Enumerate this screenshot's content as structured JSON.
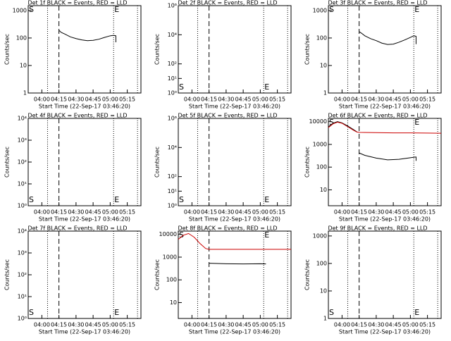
{
  "chart_data": [
    {
      "type": "line",
      "title": "Det 1f BLACK = Events, RED = LLD",
      "xlabel": "Start Time (22-Sep-17 03:46:20)",
      "ylabel": "Counts/sec",
      "log_y": true,
      "xlim": [
        "03:48",
        "05:27"
      ],
      "xticks": [
        "04:00",
        "04:15",
        "04:30",
        "04:45",
        "05:00",
        "05:15"
      ],
      "ylim": [
        1,
        1500
      ],
      "yticks": [
        1,
        10,
        100,
        1000
      ],
      "dotted_lines": [
        "04:05",
        "05:03",
        "05:24"
      ],
      "dashed_lines": [
        "04:15"
      ],
      "s_label": "S",
      "e_label": "E",
      "label_position": "top",
      "series": [
        {
          "color": "#000000",
          "x": [
            "04:15",
            "04:17",
            "04:20",
            "04:25",
            "04:30",
            "04:35",
            "04:40",
            "04:45",
            "04:50",
            "04:55",
            "05:00",
            "05:03",
            "05:05",
            "05:05"
          ],
          "values": [
            190,
            160,
            140,
            110,
            95,
            85,
            80,
            82,
            90,
            105,
            120,
            125,
            120,
            70
          ]
        }
      ]
    },
    {
      "type": "line",
      "title": "Det 2f BLACK = Events, RED = LLD",
      "xlabel": "Start Time (22-Sep-17 03:46:20)",
      "ylabel": "Counts/sec",
      "log_y": true,
      "xlim": [
        "03:48",
        "05:27"
      ],
      "xticks": [
        "04:00",
        "04:15",
        "04:30",
        "04:45",
        "05:00",
        "05:15"
      ],
      "ylim": [
        1,
        1000000
      ],
      "yticks": [
        {
          "value": 1,
          "label": "10⁰"
        },
        {
          "value": 10,
          "label": "10¹"
        },
        {
          "value": 100,
          "label": "10²"
        },
        {
          "value": 10000,
          "label": "10⁴"
        },
        {
          "value": 1000000,
          "label": "10⁶"
        }
      ],
      "dotted_lines": [
        "04:05",
        "05:03",
        "05:24"
      ],
      "dashed_lines": [
        "04:15"
      ],
      "s_label": "S",
      "e_label": "E",
      "label_position": "bottom",
      "series": []
    },
    {
      "type": "line",
      "title": "Det 3f BLACK = Events, RED = LLD",
      "xlabel": "Start Time (22-Sep-17 03:46:20)",
      "ylabel": "Counts/sec",
      "log_y": true,
      "xlim": [
        "03:48",
        "05:27"
      ],
      "xticks": [
        "04:00",
        "04:15",
        "04:30",
        "04:45",
        "05:00",
        "05:15"
      ],
      "ylim": [
        1,
        1500
      ],
      "yticks": [
        1,
        10,
        100,
        1000
      ],
      "dotted_lines": [
        "04:05",
        "05:03",
        "05:24"
      ],
      "dashed_lines": [
        "04:15"
      ],
      "s_label": "S",
      "e_label": "E",
      "label_position": "top",
      "series": [
        {
          "color": "#000000",
          "x": [
            "04:15",
            "04:17",
            "04:20",
            "04:25",
            "04:30",
            "04:35",
            "04:40",
            "04:45",
            "04:50",
            "04:55",
            "05:00",
            "05:03",
            "05:05",
            "05:05"
          ],
          "values": [
            170,
            150,
            120,
            95,
            80,
            65,
            58,
            60,
            70,
            85,
            105,
            120,
            115,
            60
          ]
        }
      ]
    },
    {
      "type": "line",
      "title": "Det 4f BLACK = Events, RED = LLD",
      "xlabel": "Start Time (22-Sep-17 03:46:20)",
      "ylabel": "Counts/sec",
      "log_y": true,
      "xlim": [
        "03:48",
        "05:27"
      ],
      "xticks": [
        "04:00",
        "04:15",
        "04:30",
        "04:45",
        "05:00",
        "05:15"
      ],
      "ylim": [
        1,
        10000
      ],
      "yticks": [
        {
          "value": 1,
          "label": "10⁰"
        },
        {
          "value": 10,
          "label": "10¹"
        },
        {
          "value": 100,
          "label": "10²"
        },
        {
          "value": 1000,
          "label": "10³"
        },
        {
          "value": 10000,
          "label": "10⁴"
        }
      ],
      "dotted_lines": [
        "04:05",
        "05:03",
        "05:24"
      ],
      "dashed_lines": [
        "04:15"
      ],
      "s_label": "S",
      "e_label": "E",
      "label_position": "bottom",
      "series": []
    },
    {
      "type": "line",
      "title": "Det 5f BLACK = Events, RED = LLD",
      "xlabel": "Start Time (22-Sep-17 03:46:20)",
      "ylabel": "Counts/sec",
      "log_y": true,
      "xlim": [
        "03:48",
        "05:27"
      ],
      "xticks": [
        "04:00",
        "04:15",
        "04:30",
        "04:45",
        "05:00",
        "05:15"
      ],
      "ylim": [
        1,
        1000000
      ],
      "yticks": [
        {
          "value": 1,
          "label": "10⁰"
        },
        {
          "value": 10,
          "label": "10¹"
        },
        {
          "value": 100,
          "label": "10²"
        },
        {
          "value": 10000,
          "label": "10⁴"
        },
        {
          "value": 1000000,
          "label": "10⁶"
        }
      ],
      "dotted_lines": [
        "04:05",
        "05:03",
        "05:24"
      ],
      "dashed_lines": [
        "04:15"
      ],
      "s_label": "S",
      "e_label": "E",
      "label_position": "bottom",
      "series": []
    },
    {
      "type": "line",
      "title": "Det 6f BLACK = Events, RED = LLD",
      "xlabel": "Start Time (22-Sep-17 03:46:20)",
      "ylabel": "Counts/sec",
      "log_y": true,
      "xlim": [
        "03:48",
        "05:27"
      ],
      "xticks": [
        "04:00",
        "04:15",
        "04:30",
        "04:45",
        "05:00",
        "05:15"
      ],
      "ylim": [
        2,
        14000
      ],
      "yticks": [
        10,
        100,
        1000,
        10000
      ],
      "dotted_lines": [
        "04:05",
        "05:03",
        "05:24"
      ],
      "dashed_lines": [
        "04:15"
      ],
      "s_label": "S",
      "e_label": "E",
      "label_position": "top",
      "series": [
        {
          "color": "#000000",
          "x": [
            "03:48",
            "03:52",
            "03:56",
            "04:00",
            "04:05",
            "04:10",
            "04:13",
            "04:15",
            "04:15",
            "04:20",
            "04:30",
            "04:40",
            "04:50",
            "05:00",
            "05:05",
            "05:05"
          ],
          "values": [
            6000,
            8500,
            10000,
            8800,
            6500,
            4500,
            3600,
            null,
            420,
            330,
            250,
            210,
            220,
            260,
            280,
            190
          ]
        },
        {
          "color": "#cc0000",
          "x": [
            "03:48",
            "03:52",
            "03:56",
            "04:00",
            "04:05",
            "04:10",
            "04:13",
            "04:15",
            "04:30",
            "04:45",
            "05:00",
            "05:15",
            "05:27"
          ],
          "values": [
            5500,
            8000,
            9500,
            8500,
            6000,
            4200,
            3500,
            3400,
            3300,
            3200,
            3200,
            3150,
            3100
          ]
        }
      ]
    },
    {
      "type": "line",
      "title": "Det 7f BLACK = Events, RED = LLD",
      "xlabel": "Start Time (22-Sep-17 03:46:20)",
      "ylabel": "Counts/sec",
      "log_y": true,
      "xlim": [
        "03:48",
        "05:27"
      ],
      "xticks": [
        "04:00",
        "04:15",
        "04:30",
        "04:45",
        "05:00",
        "05:15"
      ],
      "ylim": [
        1,
        10000
      ],
      "yticks": [
        {
          "value": 1,
          "label": "10⁰"
        },
        {
          "value": 10,
          "label": "10¹"
        },
        {
          "value": 100,
          "label": "10²"
        },
        {
          "value": 1000,
          "label": "10³"
        },
        {
          "value": 10000,
          "label": "10⁴"
        }
      ],
      "dotted_lines": [
        "04:05",
        "05:03",
        "05:24"
      ],
      "dashed_lines": [
        "04:15"
      ],
      "s_label": "S",
      "e_label": "E",
      "label_position": "bottom",
      "series": []
    },
    {
      "type": "line",
      "title": "Det 8f BLACK = Events, RED = LLD",
      "xlabel": "Start Time (22-Sep-17 03:46:20)",
      "ylabel": "Counts/sec",
      "log_y": true,
      "xlim": [
        "03:48",
        "05:27"
      ],
      "xticks": [
        "04:00",
        "04:15",
        "04:30",
        "04:45",
        "05:00",
        "05:15"
      ],
      "ylim": [
        2,
        14000
      ],
      "yticks": [
        10,
        100,
        1000,
        10000
      ],
      "dotted_lines": [
        "04:05",
        "05:03",
        "05:24"
      ],
      "dashed_lines": [
        "04:15"
      ],
      "s_label": "S",
      "e_label": "E",
      "label_position": "top",
      "series": [
        {
          "color": "#000000",
          "x": [
            "04:15",
            "04:30",
            "04:45",
            "05:00",
            "05:05"
          ],
          "values": [
            540,
            510,
            500,
            510,
            500
          ]
        },
        {
          "color": "#cc0000",
          "x": [
            "03:48",
            "03:52",
            "03:57",
            "04:02",
            "04:07",
            "04:12",
            "04:15",
            "04:30",
            "04:45",
            "05:00",
            "05:15",
            "05:27"
          ],
          "values": [
            6000,
            9000,
            11000,
            7500,
            4000,
            2400,
            2200,
            2200,
            2200,
            2200,
            2200,
            2200
          ]
        }
      ]
    },
    {
      "type": "line",
      "title": "Det 9f BLACK = Events, RED = LLD",
      "xlabel": "Start Time (22-Sep-17 03:46:20)",
      "ylabel": "Counts/sec",
      "log_y": true,
      "xlim": [
        "03:48",
        "05:27"
      ],
      "xticks": [
        "04:00",
        "04:15",
        "04:30",
        "04:45",
        "05:00",
        "05:15"
      ],
      "ylim": [
        1,
        1500
      ],
      "yticks": [
        1,
        10,
        100,
        1000
      ],
      "dotted_lines": [
        "04:05",
        "05:03",
        "05:24"
      ],
      "dashed_lines": [
        "04:15"
      ],
      "s_label": "S",
      "e_label": "E",
      "label_position": "bottom",
      "series": []
    }
  ]
}
